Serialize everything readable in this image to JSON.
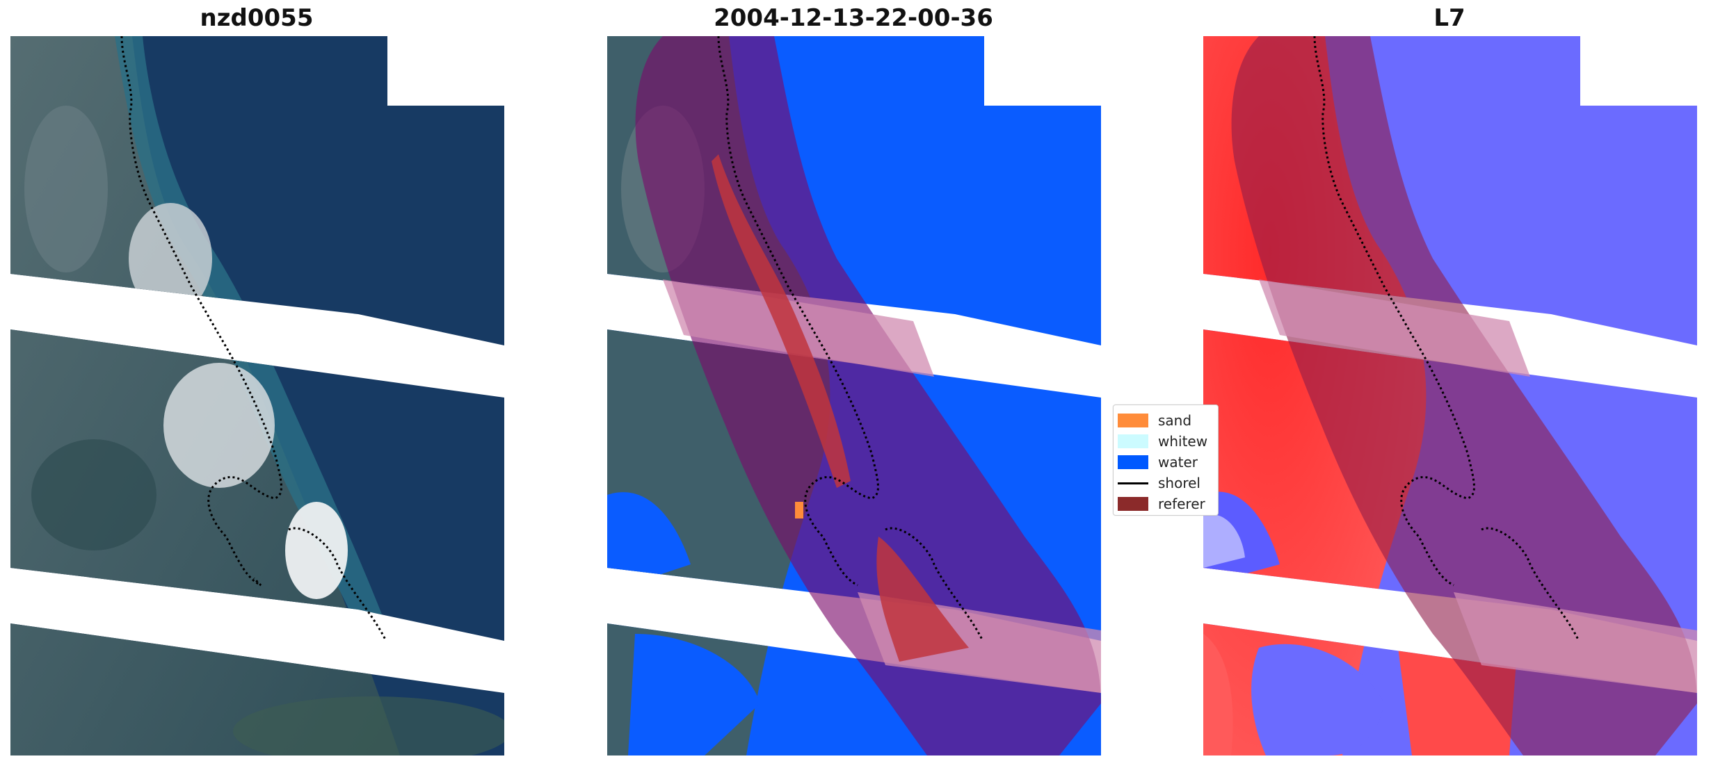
{
  "panels": [
    {
      "title": "nzd0055"
    },
    {
      "title": "2004-12-13-22-00-36"
    },
    {
      "title": "L7"
    }
  ],
  "legend": {
    "items": [
      {
        "label": "sand",
        "color": "#ff8c3a",
        "kind": "patch"
      },
      {
        "label": "whitew",
        "color": "#ccfbff",
        "kind": "patch"
      },
      {
        "label": "water",
        "color": "#0059ff",
        "kind": "patch"
      },
      {
        "label": "shorel",
        "color": "#000000",
        "kind": "line"
      },
      {
        "label": "referer",
        "color": "#8b2a2a",
        "kind": "patch"
      }
    ]
  },
  "colors": {
    "deep_water": "#173a63",
    "land": "#3f5f6a",
    "foam": "#d8dde0",
    "water_class": "#0a5cff",
    "overlay": "#8f1d4a",
    "index_land": "#ff3a3a",
    "index_water": "#6b6bff"
  }
}
